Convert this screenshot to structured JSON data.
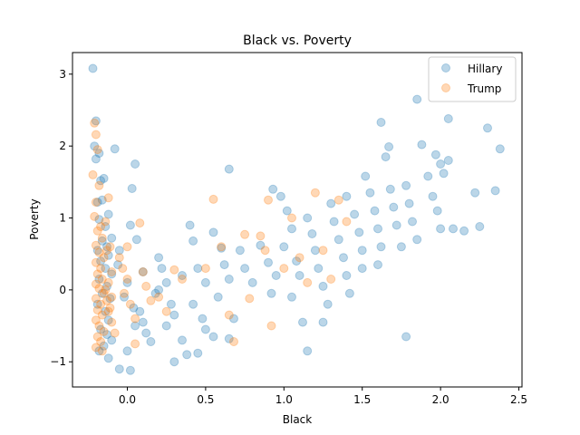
{
  "chart_data": {
    "type": "scatter",
    "title": "Black vs. Poverty",
    "xlabel": "Black",
    "ylabel": "Poverty",
    "xlim": [
      -0.35,
      2.52
    ],
    "ylim": [
      -1.35,
      3.3
    ],
    "xticks": [
      "0.0",
      "0.5",
      "1.0",
      "1.5",
      "2.0",
      "2.5"
    ],
    "xtick_values": [
      0.0,
      0.5,
      1.0,
      1.5,
      2.0,
      2.5
    ],
    "yticks": [
      "−1",
      "0",
      "1",
      "2",
      "3"
    ],
    "ytick_values": [
      -1,
      0,
      1,
      2,
      3
    ],
    "grid": false,
    "legend_position": "top-right",
    "series": [
      {
        "name": "Hillary",
        "color": "#1f77b4",
        "points": [
          [
            -0.22,
            3.08
          ],
          [
            -0.2,
            2.35
          ],
          [
            -0.21,
            2.0
          ],
          [
            -0.18,
            1.9
          ],
          [
            -0.2,
            1.82
          ],
          [
            -0.15,
            1.55
          ],
          [
            -0.17,
            1.52
          ],
          [
            -0.16,
            1.25
          ],
          [
            -0.19,
            1.22
          ],
          [
            -0.12,
            1.05
          ],
          [
            -0.18,
            0.98
          ],
          [
            -0.14,
            0.88
          ],
          [
            -0.1,
            0.72
          ],
          [
            -0.16,
            0.68
          ],
          [
            -0.13,
            0.6
          ],
          [
            -0.19,
            0.55
          ],
          [
            -0.12,
            0.48
          ],
          [
            -0.17,
            0.4
          ],
          [
            -0.14,
            0.3
          ],
          [
            -0.1,
            0.22
          ],
          [
            -0.18,
            0.15
          ],
          [
            -0.13,
            0.05
          ],
          [
            -0.16,
            -0.05
          ],
          [
            -0.11,
            -0.12
          ],
          [
            -0.19,
            -0.2
          ],
          [
            -0.14,
            -0.3
          ],
          [
            -0.12,
            -0.42
          ],
          [
            -0.17,
            -0.55
          ],
          [
            -0.13,
            -0.62
          ],
          [
            -0.1,
            -0.7
          ],
          [
            -0.15,
            -0.78
          ],
          [
            -0.18,
            -0.85
          ],
          [
            -0.12,
            -0.95
          ],
          [
            -0.08,
            1.96
          ],
          [
            0.05,
            1.75
          ],
          [
            0.03,
            1.41
          ],
          [
            0.02,
            0.9
          ],
          [
            0.06,
            0.7
          ],
          [
            -0.05,
            0.55
          ],
          [
            0.0,
            0.1
          ],
          [
            -0.02,
            -0.1
          ],
          [
            0.04,
            -0.25
          ],
          [
            0.08,
            -0.3
          ],
          [
            0.1,
            -0.45
          ],
          [
            0.05,
            -0.5
          ],
          [
            0.12,
            -0.6
          ],
          [
            0.15,
            -0.72
          ],
          [
            0.0,
            -0.85
          ],
          [
            -0.05,
            -1.1
          ],
          [
            0.02,
            -1.12
          ],
          [
            0.2,
            0.45
          ],
          [
            0.22,
            0.3
          ],
          [
            0.25,
            0.1
          ],
          [
            0.18,
            -0.05
          ],
          [
            0.28,
            -0.2
          ],
          [
            0.3,
            -0.35
          ],
          [
            0.25,
            -0.5
          ],
          [
            0.35,
            -0.7
          ],
          [
            0.38,
            -0.9
          ],
          [
            0.3,
            -1.0
          ],
          [
            0.4,
            0.9
          ],
          [
            0.42,
            0.68
          ],
          [
            0.45,
            0.3
          ],
          [
            0.5,
            0.1
          ],
          [
            0.42,
            -0.2
          ],
          [
            0.48,
            -0.4
          ],
          [
            0.5,
            -0.55
          ],
          [
            0.55,
            -0.65
          ],
          [
            0.45,
            -0.88
          ],
          [
            0.55,
            0.8
          ],
          [
            0.6,
            0.58
          ],
          [
            0.62,
            0.35
          ],
          [
            0.65,
            0.15
          ],
          [
            0.58,
            -0.1
          ],
          [
            0.68,
            -0.4
          ],
          [
            0.65,
            -0.68
          ],
          [
            0.65,
            1.68
          ],
          [
            0.72,
            0.55
          ],
          [
            0.75,
            0.3
          ],
          [
            0.8,
            0.1
          ],
          [
            0.85,
            0.62
          ],
          [
            0.9,
            0.38
          ],
          [
            0.95,
            0.2
          ],
          [
            0.92,
            -0.05
          ],
          [
            0.93,
            1.4
          ],
          [
            0.98,
            1.3
          ],
          [
            1.02,
            1.1
          ],
          [
            1.05,
            0.85
          ],
          [
            1.0,
            0.6
          ],
          [
            1.08,
            0.4
          ],
          [
            1.1,
            0.2
          ],
          [
            1.05,
            -0.1
          ],
          [
            1.12,
            -0.45
          ],
          [
            1.15,
            -0.85
          ],
          [
            1.15,
            1.0
          ],
          [
            1.18,
            0.78
          ],
          [
            1.2,
            0.55
          ],
          [
            1.22,
            0.3
          ],
          [
            1.25,
            0.05
          ],
          [
            1.28,
            -0.2
          ],
          [
            1.25,
            -0.45
          ],
          [
            1.3,
            1.2
          ],
          [
            1.32,
            0.95
          ],
          [
            1.35,
            0.7
          ],
          [
            1.38,
            0.45
          ],
          [
            1.4,
            0.2
          ],
          [
            1.42,
            -0.05
          ],
          [
            1.4,
            1.3
          ],
          [
            1.45,
            1.05
          ],
          [
            1.48,
            0.8
          ],
          [
            1.5,
            0.55
          ],
          [
            1.5,
            0.3
          ],
          [
            1.52,
            1.58
          ],
          [
            1.55,
            1.35
          ],
          [
            1.58,
            1.1
          ],
          [
            1.6,
            0.85
          ],
          [
            1.62,
            0.6
          ],
          [
            1.6,
            0.35
          ],
          [
            1.65,
            1.85
          ],
          [
            1.68,
            1.4
          ],
          [
            1.7,
            1.15
          ],
          [
            1.72,
            0.9
          ],
          [
            1.75,
            0.6
          ],
          [
            1.62,
            2.33
          ],
          [
            1.67,
            1.99
          ],
          [
            1.78,
            1.45
          ],
          [
            1.8,
            1.2
          ],
          [
            1.82,
            0.95
          ],
          [
            1.85,
            0.7
          ],
          [
            1.78,
            -0.65
          ],
          [
            1.88,
            2.02
          ],
          [
            1.92,
            1.58
          ],
          [
            1.95,
            1.3
          ],
          [
            1.98,
            1.1
          ],
          [
            2.0,
            0.85
          ],
          [
            1.85,
            2.65
          ],
          [
            1.97,
            1.88
          ],
          [
            2.0,
            1.75
          ],
          [
            2.02,
            1.62
          ],
          [
            2.05,
            2.38
          ],
          [
            2.05,
            1.8
          ],
          [
            2.08,
            0.85
          ],
          [
            2.15,
            0.82
          ],
          [
            2.22,
            1.35
          ],
          [
            2.25,
            0.88
          ],
          [
            2.3,
            2.25
          ],
          [
            2.35,
            1.38
          ],
          [
            2.38,
            1.96
          ],
          [
            0.35,
            0.2
          ],
          [
            0.2,
            0.0
          ],
          [
            -0.06,
            0.35
          ],
          [
            0.1,
            0.25
          ]
        ]
      },
      {
        "name": "Trump",
        "color": "#ff7f0e",
        "points": [
          [
            -0.21,
            2.32
          ],
          [
            -0.2,
            2.16
          ],
          [
            -0.19,
            1.95
          ],
          [
            -0.22,
            1.6
          ],
          [
            -0.18,
            1.45
          ],
          [
            -0.2,
            1.22
          ],
          [
            -0.21,
            1.02
          ],
          [
            -0.17,
            0.88
          ],
          [
            -0.19,
            0.82
          ],
          [
            -0.16,
            0.72
          ],
          [
            -0.2,
            0.62
          ],
          [
            -0.18,
            0.52
          ],
          [
            -0.15,
            0.45
          ],
          [
            -0.2,
            0.38
          ],
          [
            -0.17,
            0.3
          ],
          [
            -0.19,
            0.22
          ],
          [
            -0.16,
            0.15
          ],
          [
            -0.2,
            0.08
          ],
          [
            -0.18,
            0.02
          ],
          [
            -0.15,
            -0.05
          ],
          [
            -0.2,
            -0.12
          ],
          [
            -0.17,
            -0.2
          ],
          [
            -0.19,
            -0.28
          ],
          [
            -0.16,
            -0.35
          ],
          [
            -0.2,
            -0.42
          ],
          [
            -0.18,
            -0.5
          ],
          [
            -0.15,
            -0.58
          ],
          [
            -0.19,
            -0.65
          ],
          [
            -0.17,
            -0.72
          ],
          [
            -0.2,
            -0.8
          ],
          [
            -0.16,
            -0.85
          ],
          [
            -0.12,
            1.28
          ],
          [
            -0.1,
            0.25
          ],
          [
            -0.12,
            0.1
          ],
          [
            -0.1,
            -0.1
          ],
          [
            -0.12,
            -0.3
          ],
          [
            -0.1,
            -0.45
          ],
          [
            -0.08,
            -0.6
          ],
          [
            -0.05,
            0.45
          ],
          [
            -0.03,
            0.3
          ],
          [
            0.0,
            0.15
          ],
          [
            -0.02,
            -0.05
          ],
          [
            0.02,
            -0.2
          ],
          [
            0.05,
            -0.4
          ],
          [
            0.08,
            0.93
          ],
          [
            0.1,
            0.25
          ],
          [
            0.12,
            0.05
          ],
          [
            0.15,
            -0.15
          ],
          [
            0.05,
            -0.75
          ],
          [
            0.3,
            0.28
          ],
          [
            0.5,
            0.3
          ],
          [
            0.55,
            1.26
          ],
          [
            0.6,
            0.6
          ],
          [
            0.65,
            -0.35
          ],
          [
            0.68,
            -0.72
          ],
          [
            0.75,
            0.77
          ],
          [
            0.78,
            -0.12
          ],
          [
            0.85,
            0.75
          ],
          [
            0.88,
            0.55
          ],
          [
            0.9,
            1.25
          ],
          [
            0.92,
            -0.5
          ],
          [
            1.0,
            0.3
          ],
          [
            1.05,
            1.0
          ],
          [
            1.1,
            0.45
          ],
          [
            1.15,
            0.1
          ],
          [
            1.2,
            1.35
          ],
          [
            1.25,
            0.55
          ],
          [
            1.3,
            0.15
          ],
          [
            1.35,
            1.25
          ],
          [
            1.4,
            0.95
          ],
          [
            -0.14,
            0.95
          ],
          [
            -0.13,
            0.55
          ],
          [
            -0.11,
            0.6
          ],
          [
            -0.14,
            0.0
          ],
          [
            -0.13,
            -0.15
          ],
          [
            -0.11,
            -0.25
          ],
          [
            0.0,
            0.6
          ],
          [
            0.2,
            -0.1
          ],
          [
            0.25,
            -0.3
          ],
          [
            0.35,
            0.15
          ]
        ]
      }
    ]
  }
}
